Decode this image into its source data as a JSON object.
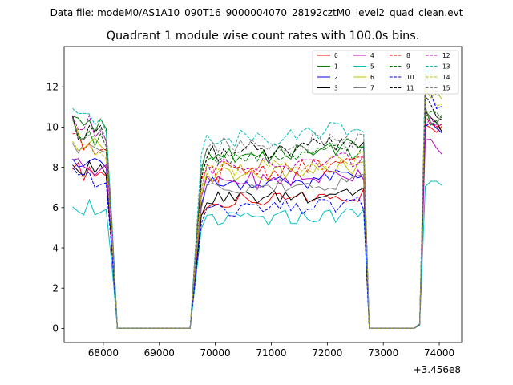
{
  "chart_data": {
    "type": "line",
    "suptitle": "Data file: modeM0/AS1A10_090T16_9000004070_28192cztM0_level2_quad_clean.evt",
    "title": "Quadrant 1 module wise count rates with 100.0s bins.",
    "xlabel": "",
    "ylabel": "",
    "offset_text": "+3.456e8",
    "xlim": [
      67300,
      74400
    ],
    "ylim": [
      -0.7,
      14.0
    ],
    "xticks": [
      68000,
      69000,
      70000,
      71000,
      72000,
      73000,
      74000
    ],
    "yticks": [
      0,
      2,
      4,
      6,
      8,
      10,
      12
    ],
    "legend_position": "top-right",
    "x_bins": [
      67450,
      67550,
      67650,
      67750,
      67850,
      67950,
      68050,
      68150,
      68250,
      68350,
      68450,
      68550,
      68650,
      68750,
      68850,
      68950,
      69050,
      69150,
      69250,
      69350,
      69450,
      69550,
      69650,
      69750,
      69850,
      69950,
      70050,
      70150,
      70250,
      70350,
      70450,
      70550,
      70650,
      70750,
      70850,
      70950,
      71050,
      71150,
      71250,
      71350,
      71450,
      71550,
      71650,
      71750,
      71850,
      71950,
      72050,
      72150,
      72250,
      72350,
      72450,
      72550,
      72650,
      72750,
      72850,
      72950,
      73050,
      73150,
      73250,
      73350,
      73450,
      73550,
      73650,
      73750,
      73850,
      73950,
      74050
    ],
    "segments": [
      {
        "from_bin": 0,
        "to_bin": 8,
        "shape": [
          1.0,
          0.95,
          0.93,
          0.96,
          0.92,
          0.94,
          0.9,
          0.5,
          0
        ]
      },
      {
        "from_bin": 8,
        "to_bin": 21,
        "shape": [
          0,
          0,
          0,
          0,
          0,
          0,
          0,
          0,
          0,
          0,
          0,
          0,
          0,
          0
        ]
      },
      {
        "from_bin": 21,
        "to_bin": 53,
        "shape": [
          0,
          0.45,
          0.9,
          1.0,
          1.0,
          0.98,
          1.02,
          1.0,
          0.99,
          1.01,
          1.0,
          1.02,
          1.0,
          1.01,
          0.99,
          1.0,
          1.01,
          1.02,
          1.0,
          1.03,
          1.02,
          1.01,
          1.04,
          1.03,
          1.02,
          1.05,
          1.04,
          1.06,
          1.05,
          1.04,
          1.05,
          1.06,
          0.12
        ]
      },
      {
        "from_bin": 53,
        "to_bin": 62,
        "shape": [
          0.12,
          0,
          0,
          0,
          0,
          0,
          0,
          0,
          0,
          0.02
        ]
      },
      {
        "from_bin": 62,
        "to_bin": 66,
        "shape": [
          0.02,
          1.0,
          0.98,
          0.96,
          0.95
        ]
      }
    ],
    "series": [
      {
        "name": "0",
        "color": "#ff0000",
        "style": "solid",
        "level1": 8.3,
        "level2": 6.3,
        "level3": 10.5
      },
      {
        "name": "1",
        "color": "#008000",
        "style": "solid",
        "level1": 10.8,
        "level2": 8.6,
        "level3": 10.6
      },
      {
        "name": "2",
        "color": "#0000ff",
        "style": "solid",
        "level1": 8.8,
        "level2": 7.2,
        "level3": 10.2
      },
      {
        "name": "3",
        "color": "#000000",
        "style": "solid",
        "level1": 8.3,
        "level2": 6.5,
        "level3": 10.4
      },
      {
        "name": "4",
        "color": "#bf00bf",
        "style": "solid",
        "level1": 8.6,
        "level2": 7.3,
        "level3": 9.3
      },
      {
        "name": "5",
        "color": "#00bfbf",
        "style": "solid",
        "level1": 6.4,
        "level2": 5.4,
        "level3": 7.3
      },
      {
        "name": "6",
        "color": "#bfbf00",
        "style": "solid",
        "level1": 10.0,
        "level2": 7.6,
        "level3": 12.0
      },
      {
        "name": "7",
        "color": "#808080",
        "style": "solid",
        "level1": 9.5,
        "level2": 7.0,
        "level3": 10.8
      },
      {
        "name": "8",
        "color": "#ff0000",
        "style": "dashed",
        "level1": 9.8,
        "level2": 7.8,
        "level3": 10.4
      },
      {
        "name": "9",
        "color": "#008000",
        "style": "dashed",
        "level1": 10.2,
        "level2": 8.4,
        "level3": 10.9
      },
      {
        "name": "10",
        "color": "#0000ff",
        "style": "dashed",
        "level1": 7.8,
        "level2": 5.9,
        "level3": 11.6
      },
      {
        "name": "11",
        "color": "#000000",
        "style": "dashed",
        "level1": 10.3,
        "level2": 8.7,
        "level3": 11.2
      },
      {
        "name": "12",
        "color": "#bf00bf",
        "style": "dashed",
        "level1": 10.6,
        "level2": 8.0,
        "level3": 10.3
      },
      {
        "name": "13",
        "color": "#00bfbf",
        "style": "dashed",
        "level1": 11.1,
        "level2": 9.5,
        "level3": 12.7
      },
      {
        "name": "14",
        "color": "#bfbf00",
        "style": "dashed",
        "level1": 9.3,
        "level2": 8.0,
        "level3": 11.7
      },
      {
        "name": "15",
        "color": "#808080",
        "style": "dashed",
        "level1": 10.3,
        "level2": 9.0,
        "level3": 12.4
      }
    ]
  }
}
